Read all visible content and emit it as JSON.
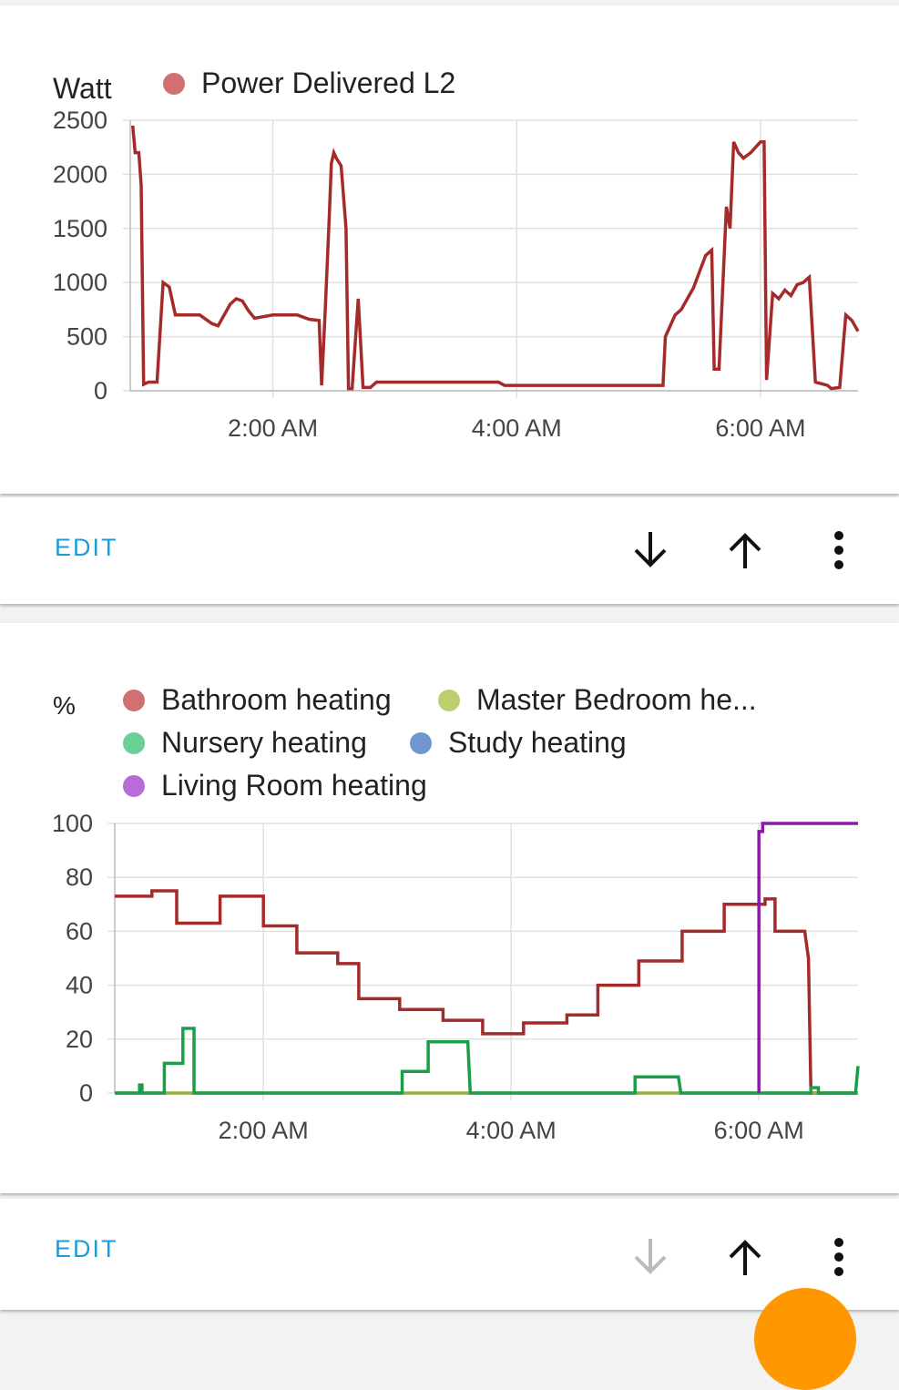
{
  "cards": [
    {
      "edit_label": "EDIT",
      "chart_data": {
        "type": "line",
        "ylabel": "Watt",
        "ylim": [
          0,
          2500
        ],
        "yticks": [
          "2500",
          "2000",
          "1500",
          "1000",
          "500",
          "0"
        ],
        "xticks": [
          "2:00 AM",
          "4:00 AM",
          "6:00 AM"
        ],
        "grid": true,
        "legend_position": "top",
        "series": [
          {
            "name": "Power Delivered L2",
            "color": "#a52a2a",
            "legend_color": "#d07070",
            "points": [
              [
                0.85,
                2450
              ],
              [
                0.87,
                2200
              ],
              [
                0.9,
                2200
              ],
              [
                0.92,
                1900
              ],
              [
                0.94,
                60
              ],
              [
                0.98,
                80
              ],
              [
                1.05,
                80
              ],
              [
                1.1,
                1000
              ],
              [
                1.15,
                960
              ],
              [
                1.2,
                700
              ],
              [
                1.3,
                700
              ],
              [
                1.4,
                700
              ],
              [
                1.5,
                620
              ],
              [
                1.55,
                600
              ],
              [
                1.6,
                700
              ],
              [
                1.65,
                800
              ],
              [
                1.7,
                850
              ],
              [
                1.75,
                830
              ],
              [
                1.8,
                740
              ],
              [
                1.85,
                670
              ],
              [
                1.9,
                680
              ],
              [
                2.0,
                700
              ],
              [
                2.1,
                700
              ],
              [
                2.2,
                700
              ],
              [
                2.3,
                660
              ],
              [
                2.38,
                650
              ],
              [
                2.4,
                50
              ],
              [
                2.43,
                750
              ],
              [
                2.46,
                1550
              ],
              [
                2.48,
                2100
              ],
              [
                2.5,
                2200
              ],
              [
                2.52,
                2150
              ],
              [
                2.56,
                2080
              ],
              [
                2.6,
                1500
              ],
              [
                2.62,
                20
              ],
              [
                2.65,
                20
              ],
              [
                2.7,
                850
              ],
              [
                2.74,
                30
              ],
              [
                2.8,
                30
              ],
              [
                2.85,
                80
              ],
              [
                3.0,
                80
              ],
              [
                3.5,
                80
              ],
              [
                3.85,
                80
              ],
              [
                3.9,
                50
              ],
              [
                4.5,
                50
              ],
              [
                5.0,
                50
              ],
              [
                5.2,
                50
              ],
              [
                5.22,
                500
              ],
              [
                5.3,
                700
              ],
              [
                5.35,
                750
              ],
              [
                5.4,
                850
              ],
              [
                5.45,
                950
              ],
              [
                5.5,
                1100
              ],
              [
                5.55,
                1250
              ],
              [
                5.6,
                1300
              ],
              [
                5.62,
                200
              ],
              [
                5.66,
                200
              ],
              [
                5.7,
                1200
              ],
              [
                5.72,
                1700
              ],
              [
                5.75,
                1500
              ],
              [
                5.78,
                2300
              ],
              [
                5.82,
                2200
              ],
              [
                5.86,
                2150
              ],
              [
                5.92,
                2200
              ],
              [
                6.0,
                2300
              ],
              [
                6.03,
                2300
              ],
              [
                6.05,
                100
              ],
              [
                6.1,
                900
              ],
              [
                6.15,
                850
              ],
              [
                6.2,
                930
              ],
              [
                6.25,
                880
              ],
              [
                6.3,
                980
              ],
              [
                6.35,
                1000
              ],
              [
                6.4,
                1050
              ],
              [
                6.45,
                80
              ],
              [
                6.55,
                50
              ],
              [
                6.58,
                20
              ],
              [
                6.65,
                30
              ],
              [
                6.7,
                700
              ],
              [
                6.75,
                650
              ],
              [
                6.8,
                550
              ]
            ]
          }
        ]
      }
    },
    {
      "edit_label": "EDIT",
      "chart_data": {
        "type": "line",
        "ylabel": "%",
        "ylim": [
          0,
          100
        ],
        "yticks": [
          "100",
          "80",
          "60",
          "40",
          "20",
          "0"
        ],
        "xticks": [
          "2:00 AM",
          "4:00 AM",
          "6:00 AM"
        ],
        "grid": true,
        "legend_position": "top",
        "series": [
          {
            "name": "Bathroom heating",
            "color": "#a52a2a",
            "legend_color": "#d07070",
            "points": [
              [
                0.8,
                73
              ],
              [
                1.1,
                73
              ],
              [
                1.1,
                75
              ],
              [
                1.3,
                75
              ],
              [
                1.3,
                63
              ],
              [
                1.65,
                63
              ],
              [
                1.65,
                73
              ],
              [
                2.0,
                73
              ],
              [
                2.0,
                62
              ],
              [
                2.27,
                62
              ],
              [
                2.27,
                52
              ],
              [
                2.6,
                52
              ],
              [
                2.6,
                48
              ],
              [
                2.77,
                48
              ],
              [
                2.77,
                35
              ],
              [
                3.1,
                35
              ],
              [
                3.1,
                31
              ],
              [
                3.45,
                31
              ],
              [
                3.45,
                27
              ],
              [
                3.77,
                27
              ],
              [
                3.77,
                22
              ],
              [
                4.1,
                22
              ],
              [
                4.1,
                26
              ],
              [
                4.45,
                26
              ],
              [
                4.45,
                29
              ],
              [
                4.7,
                29
              ],
              [
                4.7,
                40
              ],
              [
                5.03,
                40
              ],
              [
                5.03,
                49
              ],
              [
                5.38,
                49
              ],
              [
                5.38,
                60
              ],
              [
                5.72,
                60
              ],
              [
                5.72,
                70
              ],
              [
                6.05,
                70
              ],
              [
                6.05,
                72
              ],
              [
                6.13,
                72
              ],
              [
                6.13,
                60
              ],
              [
                6.37,
                60
              ],
              [
                6.4,
                50
              ],
              [
                6.42,
                0
              ],
              [
                6.8,
                0
              ]
            ]
          },
          {
            "name": "Master Bedroom he...",
            "color": "#8fb23a",
            "legend_color": "#bccf6f",
            "points": [
              [
                0.8,
                0
              ],
              [
                6.8,
                0
              ]
            ]
          },
          {
            "name": "Nursery heating",
            "color": "#1a9e4a",
            "legend_color": "#6ccf95",
            "points": [
              [
                0.8,
                0
              ],
              [
                1.0,
                0
              ],
              [
                1.0,
                3
              ],
              [
                1.02,
                3
              ],
              [
                1.02,
                0
              ],
              [
                1.2,
                0
              ],
              [
                1.2,
                11
              ],
              [
                1.35,
                11
              ],
              [
                1.35,
                24
              ],
              [
                1.44,
                24
              ],
              [
                1.44,
                0
              ],
              [
                3.12,
                0
              ],
              [
                3.12,
                8
              ],
              [
                3.33,
                8
              ],
              [
                3.33,
                19
              ],
              [
                3.65,
                19
              ],
              [
                3.67,
                0
              ],
              [
                5.0,
                0
              ],
              [
                5.0,
                6
              ],
              [
                5.35,
                6
              ],
              [
                5.37,
                0
              ],
              [
                6.42,
                0
              ],
              [
                6.42,
                2
              ],
              [
                6.48,
                2
              ],
              [
                6.48,
                0
              ],
              [
                6.78,
                0
              ],
              [
                6.8,
                10
              ]
            ]
          },
          {
            "name": "Study heating",
            "color": "#4a7bc8",
            "legend_color": "#6f96d1",
            "points": []
          },
          {
            "name": "Living Room heating",
            "color": "#8a1aa8",
            "legend_color": "#b86cd8",
            "points": [
              [
                6.0,
                0
              ],
              [
                6.0,
                97
              ],
              [
                6.03,
                97
              ],
              [
                6.03,
                100
              ],
              [
                6.8,
                100
              ]
            ]
          }
        ]
      }
    }
  ],
  "icons": {
    "move_down": "arrow-down-icon",
    "move_up": "arrow-up-icon",
    "menu": "more-vert-icon",
    "fab": "add-icon"
  }
}
